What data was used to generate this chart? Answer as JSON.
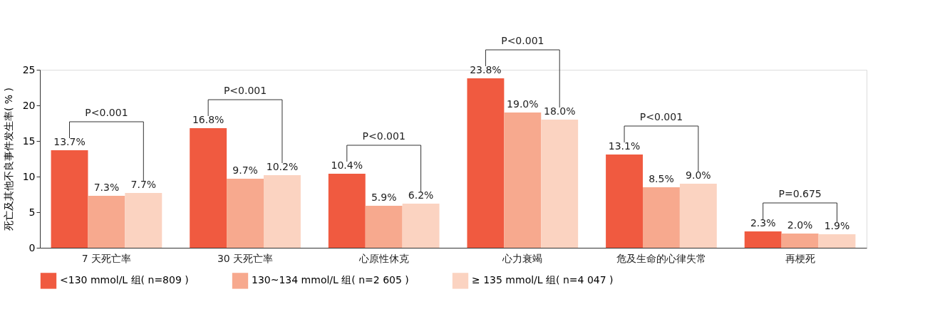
{
  "chart_data": {
    "type": "bar",
    "ylabel": "死亡及其他不良事件发生率( % )",
    "categories": [
      "7 天死亡率",
      "30 天死亡率",
      "心原性休克",
      "心力衰竭",
      "危及生命的心律失常",
      "再梗死"
    ],
    "series": [
      {
        "name": "<130 mmol/L 组( n=809 )",
        "color": "#f05a40",
        "values": [
          13.7,
          16.8,
          10.4,
          23.8,
          13.1,
          2.3
        ],
        "value_labels": [
          "13.7%",
          "16.8%",
          "10.4%",
          "23.8%",
          "13.1%",
          "2.3%"
        ]
      },
      {
        "name": "130~134 mmol/L 组( n=2 605 )",
        "color": "#f7a98e",
        "values": [
          7.3,
          9.7,
          5.9,
          19.0,
          8.5,
          2.0
        ],
        "value_labels": [
          "7.3%",
          "9.7%",
          "5.9%",
          "19.0%",
          "8.5%",
          "2.0%"
        ]
      },
      {
        "name": "≥ 135 mmol/L 组( n=4 047 )",
        "color": "#fbd3c1",
        "values": [
          7.7,
          10.2,
          6.2,
          18.0,
          9.0,
          1.9
        ],
        "value_labels": [
          "7.7%",
          "10.2%",
          "6.2%",
          "18.0%",
          "9.0%",
          "1.9%"
        ]
      }
    ],
    "ylim": [
      0,
      25
    ],
    "yticks": [
      0,
      5,
      10,
      15,
      20,
      25
    ],
    "grid": false,
    "legend": "bottom",
    "annotations": [
      "P<0.001",
      "P<0.001",
      "P<0.001",
      "P<0.001",
      "P<0.001",
      "P=0.675"
    ]
  }
}
